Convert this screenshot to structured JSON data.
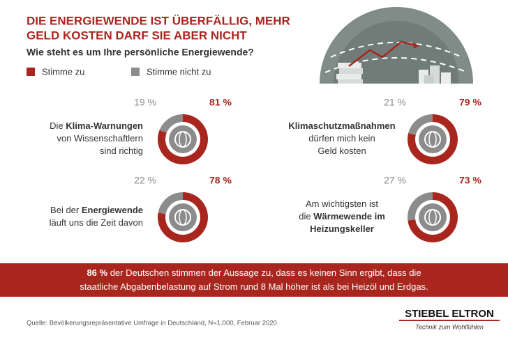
{
  "header": {
    "title": [
      "DIE ENERGIEWENDE IST ÜBERFÄLLIG, MEHR",
      "GELD KOSTEN DARF SIE ABER NICHT"
    ],
    "subtitle": "Wie steht es um Ihre persönliche Energiewende?"
  },
  "legend": [
    {
      "name": "Stimme zu",
      "color": "#a8261e"
    },
    {
      "name": "Stimme nicht zu",
      "color": "#8c8c8c"
    }
  ],
  "chart_data": [
    {
      "type": "donut",
      "values": [
        81,
        19
      ],
      "value_labels": [
        "81 %",
        "19 %"
      ],
      "caption": [
        [
          {
            "text": "Die "
          },
          {
            "text": "Klima-Warnungen",
            "bold": true
          }
        ],
        [
          {
            "text": "von Wissenschaftlern"
          }
        ],
        [
          {
            "text": "sind richtig"
          }
        ]
      ]
    },
    {
      "type": "donut",
      "values": [
        79,
        21
      ],
      "value_labels": [
        "79 %",
        "21 %"
      ],
      "caption": [
        [
          {
            "text": "Klimaschutzmaßnahmen",
            "bold": true
          }
        ],
        [
          {
            "text": "dürfen mich kein"
          }
        ],
        [
          {
            "text": "Geld kosten"
          }
        ]
      ]
    },
    {
      "type": "donut",
      "values": [
        78,
        22
      ],
      "value_labels": [
        "78 %",
        "22 %"
      ],
      "caption": [
        [
          {
            "text": "Bei der "
          },
          {
            "text": "Energiewende",
            "bold": true
          }
        ],
        [
          {
            "text": "läuft uns die Zeit davon"
          }
        ]
      ]
    },
    {
      "type": "donut",
      "values": [
        73,
        27
      ],
      "value_labels": [
        "73 %",
        "27 %"
      ],
      "caption": [
        [
          {
            "text": "Am wichtigsten ist"
          }
        ],
        [
          {
            "text": "die "
          },
          {
            "text": "Wärmewende im",
            "bold": true
          }
        ],
        [
          {
            "text": "Heizungskeller",
            "bold": true
          }
        ]
      ]
    }
  ],
  "banner": [
    [
      {
        "text": "86 %",
        "bold": true
      },
      {
        "text": " der Deutschen stimmen der Aussage zu, dass es keinen Sinn ergibt, dass die"
      }
    ],
    [
      {
        "text": "staatliche Abgabenbelastung auf Strom rund 8 Mal höher ist als bei Heizöl und Erdgas."
      }
    ]
  ],
  "source": "Quelle: Bevölkerungsrepräsentative Umfrage in Deutschland, N=1.000, Februar 2020",
  "logo": {
    "name": "STIEBEL ELTRON",
    "tagline": "Technik zum Wohlfühlen"
  }
}
